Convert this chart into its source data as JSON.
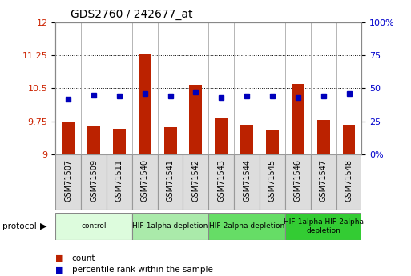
{
  "title": "GDS2760 / 242677_at",
  "samples": [
    "GSM71507",
    "GSM71509",
    "GSM71511",
    "GSM71540",
    "GSM71541",
    "GSM71542",
    "GSM71543",
    "GSM71544",
    "GSM71545",
    "GSM71546",
    "GSM71547",
    "GSM71548"
  ],
  "count_values": [
    9.72,
    9.63,
    9.58,
    11.27,
    9.62,
    10.58,
    9.83,
    9.67,
    9.55,
    10.59,
    9.78,
    9.67
  ],
  "percentile_values": [
    42,
    45,
    44,
    46,
    44,
    47,
    43,
    44,
    44,
    43,
    44,
    46
  ],
  "ylim_left": [
    9,
    12
  ],
  "ylim_right": [
    0,
    100
  ],
  "yticks_left": [
    9,
    9.75,
    10.5,
    11.25,
    12
  ],
  "yticks_right": [
    0,
    25,
    50,
    75,
    100
  ],
  "ytick_labels_left": [
    "9",
    "9.75",
    "10.5",
    "11.25",
    "12"
  ],
  "ytick_labels_right": [
    "0%",
    "25",
    "50",
    "75",
    "100%"
  ],
  "bar_color": "#bb2200",
  "dot_color": "#0000bb",
  "bar_bottom": 9,
  "protocol_groups": [
    {
      "label": "control",
      "start": 0,
      "end": 3,
      "color": "#ddfcdd"
    },
    {
      "label": "HIF-1alpha depletion",
      "start": 3,
      "end": 6,
      "color": "#aaeaaa"
    },
    {
      "label": "HIF-2alpha depletion",
      "start": 6,
      "end": 9,
      "color": "#66dd66"
    },
    {
      "label": "HIF-1alpha HIF-2alpha\ndepletion",
      "start": 9,
      "end": 12,
      "color": "#33cc33"
    }
  ],
  "legend_items": [
    {
      "label": "count",
      "color": "#bb2200"
    },
    {
      "label": "percentile rank within the sample",
      "color": "#0000bb"
    }
  ],
  "tick_label_color_left": "#cc2200",
  "tick_label_color_right": "#0000cc",
  "bg_color": "#ffffff",
  "plot_bg_color": "#ffffff",
  "cell_bg_color": "#dddddd",
  "cell_border_color": "#999999"
}
